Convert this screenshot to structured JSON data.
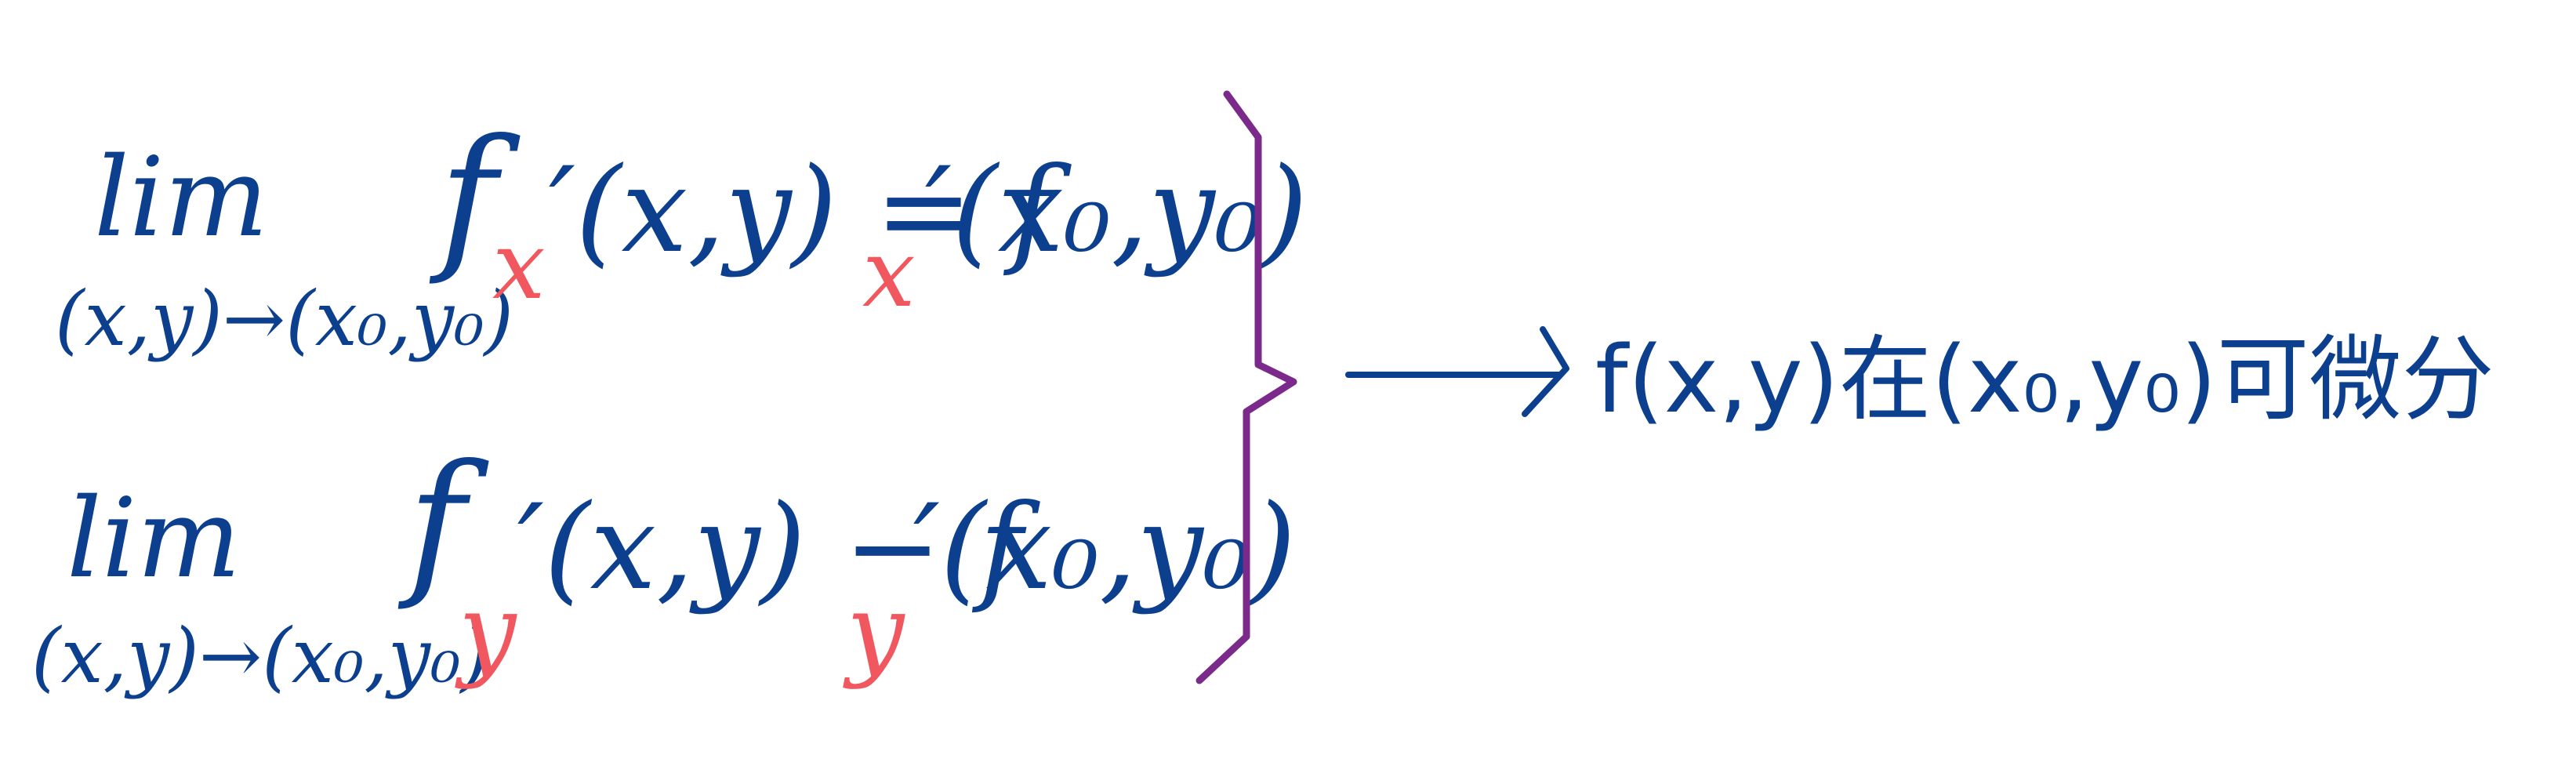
{
  "colors": {
    "ink": "#0d3f8f",
    "accent": "#f0575f",
    "brace": "#7b2a8c"
  },
  "line1": {
    "lim": "lim",
    "limit_point": "(x,y)→(x₀,y₀)",
    "func": "f",
    "sub": "x",
    "rest": "′(x,y) = f",
    "rhs_sub": "x",
    "rhs_rest": "′(x₀,y₀)"
  },
  "line2": {
    "lim": "lim",
    "limit_point": "(x,y)→(x₀,y₀)",
    "func": "f",
    "sub": "y",
    "rest": "′(x,y) − f",
    "rhs_sub": "y",
    "rhs_rest": "′(x₀,y₀)"
  },
  "conclusion": {
    "text": "f(x,y)在(x₀,y₀)可微分"
  }
}
